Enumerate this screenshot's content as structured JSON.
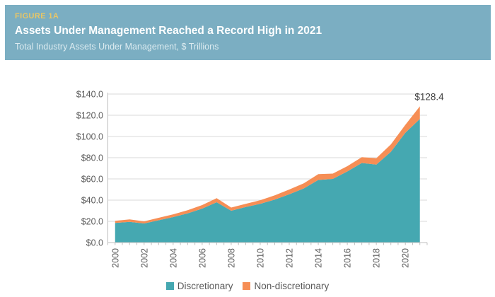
{
  "figure": {
    "label": "FIGURE 1A",
    "title": "Assets Under Management Reached a Record High in 2021",
    "subtitle": "Total Industry Assets Under Management, $ Trillions"
  },
  "colors": {
    "header_background": "#7BAEC2",
    "figure_label": "#E8C666",
    "figure_title": "#FFFFFF",
    "figure_subtitle": "#DCEBF0",
    "discretionary": "#45A8B1",
    "non_discretionary": "#F68E55",
    "gridline": "#DADADA",
    "axis": "#BFBFBF",
    "tick_label": "#595959",
    "annotation": "#3F3F3F"
  },
  "chart_data": {
    "type": "area",
    "stacked": true,
    "title": "Total Industry Assets Under Management, $ Trillions",
    "grid": true,
    "legend_position": "bottom",
    "x": [
      2000,
      2001,
      2002,
      2003,
      2004,
      2005,
      2006,
      2007,
      2008,
      2009,
      2010,
      2011,
      2012,
      2013,
      2014,
      2015,
      2016,
      2017,
      2018,
      2019,
      2020,
      2021
    ],
    "series": [
      {
        "name": "Discretionary",
        "color": "#45A8B1",
        "values": [
          18.5,
          19.5,
          18.0,
          21.0,
          24.0,
          27.5,
          32.0,
          38.0,
          30.0,
          33.5,
          36.5,
          40.5,
          45.5,
          51.0,
          59.0,
          60.0,
          67.0,
          75.0,
          73.5,
          85.5,
          103.5,
          116.5
        ]
      },
      {
        "name": "Non-discretionary",
        "color": "#F68E55",
        "values": [
          2.0,
          2.3,
          2.0,
          2.3,
          2.6,
          3.0,
          3.3,
          3.8,
          3.0,
          3.0,
          3.4,
          4.0,
          4.5,
          4.8,
          5.5,
          5.0,
          5.0,
          5.5,
          6.0,
          7.0,
          7.5,
          11.9
        ]
      }
    ],
    "totals": [
      20.5,
      21.8,
      20.0,
      23.3,
      26.6,
      30.5,
      35.3,
      41.8,
      33.0,
      36.5,
      39.9,
      44.5,
      50.0,
      55.8,
      64.5,
      65.0,
      72.0,
      80.5,
      79.5,
      92.5,
      111.0,
      128.4
    ],
    "y_axis": {
      "min": 0,
      "max": 140,
      "step": 20,
      "tick_labels": [
        "$0.0",
        "$20.0",
        "$40.0",
        "$60.0",
        "$80.0",
        "$100.0",
        "$120.0",
        "$140.0"
      ]
    },
    "x_axis": {
      "tick_labels": [
        "2000",
        "2002",
        "2004",
        "2006",
        "2008",
        "2010",
        "2012",
        "2014",
        "2016",
        "2018",
        "2020"
      ],
      "label_every": 2
    },
    "annotation": {
      "text": "$128.4",
      "year": 2021,
      "value": 128.4
    },
    "legend": [
      "Discretionary",
      "Non-discretionary"
    ]
  }
}
